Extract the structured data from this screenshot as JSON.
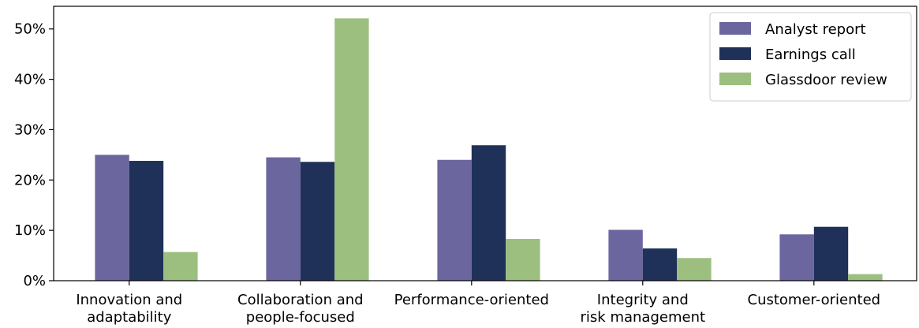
{
  "chart_data": {
    "type": "bar",
    "categories": [
      [
        "Innovation and",
        "adaptability"
      ],
      [
        "Collaboration and",
        "people-focused"
      ],
      [
        "Performance-oriented"
      ],
      [
        "Integrity and",
        "risk management"
      ],
      [
        "Customer-oriented"
      ]
    ],
    "series": [
      {
        "name": "Analyst report",
        "color": "#6b669e",
        "values": [
          25.0,
          24.5,
          24.0,
          10.1,
          9.2
        ]
      },
      {
        "name": "Earnings call",
        "color": "#1f3059",
        "values": [
          23.8,
          23.6,
          26.9,
          6.4,
          10.7
        ]
      },
      {
        "name": "Glassdoor review",
        "color": "#9cbf7f",
        "values": [
          5.7,
          52.1,
          8.3,
          4.5,
          1.3
        ]
      }
    ],
    "ylim": [
      0,
      54.5
    ],
    "yticks": [
      0,
      10,
      20,
      30,
      40,
      50
    ],
    "ytick_format": "%",
    "legend_position": "top-right",
    "grid": false
  }
}
